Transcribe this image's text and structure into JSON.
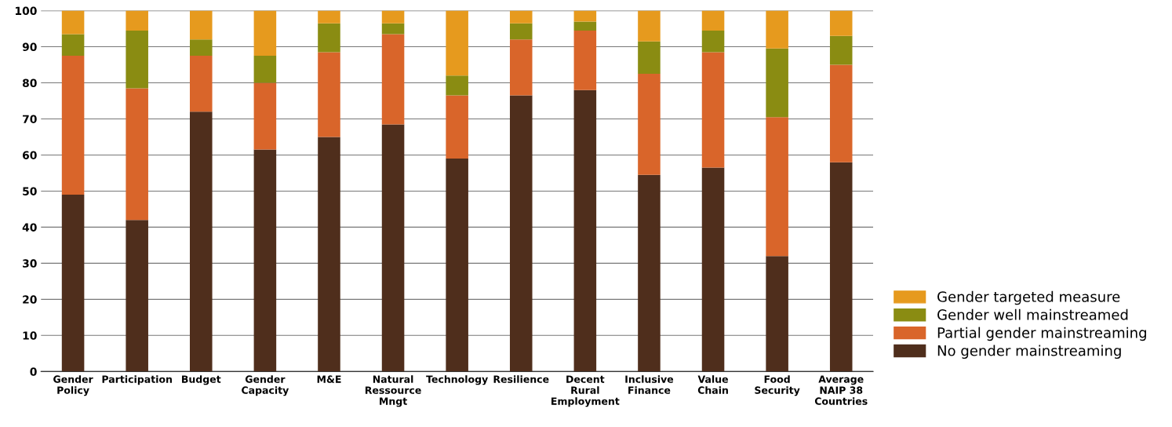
{
  "chart_data": {
    "type": "bar",
    "stacked": true,
    "categories": [
      "Gender\nPolicy",
      "Participation",
      "Budget",
      "Gender\nCapacity",
      "M&E",
      "Natural\nRessource\nMngt",
      "Technology",
      "Resilience",
      "Decent\nRural\nEmployment",
      "Inclusive\nFinance",
      "Value\nChain",
      "Food\nSecurity",
      "Average\nNAIP 38\nCountries"
    ],
    "series": [
      {
        "name": "No gender mainstreaming",
        "color": "#4f2e1c",
        "values": [
          49,
          42,
          72,
          61.5,
          65,
          68.5,
          59,
          76.5,
          78,
          54.5,
          56.5,
          32,
          58
        ]
      },
      {
        "name": "Partial gender mainstreaming",
        "color": "#d9652a",
        "values": [
          38.5,
          36.5,
          15.5,
          18.5,
          23.5,
          25,
          17.5,
          15.5,
          16.5,
          28,
          32,
          38.5,
          27
        ]
      },
      {
        "name": "Gender well mainstreamed",
        "color": "#8a8c12",
        "values": [
          6,
          16,
          4.5,
          7.5,
          8,
          3,
          5.5,
          4.5,
          2.5,
          9,
          6,
          19,
          8
        ]
      },
      {
        "name": "Gender targeted measure",
        "color": "#e69a1e",
        "values": [
          6.5,
          5.5,
          8,
          12.5,
          3.5,
          3.5,
          18,
          3.5,
          3,
          8.5,
          5.5,
          10.5,
          7
        ]
      }
    ],
    "ylim": [
      0,
      100
    ],
    "yticks": [
      0,
      10,
      20,
      30,
      40,
      50,
      60,
      70,
      80,
      90,
      100
    ],
    "grid": "y",
    "legend": "bottom right"
  }
}
